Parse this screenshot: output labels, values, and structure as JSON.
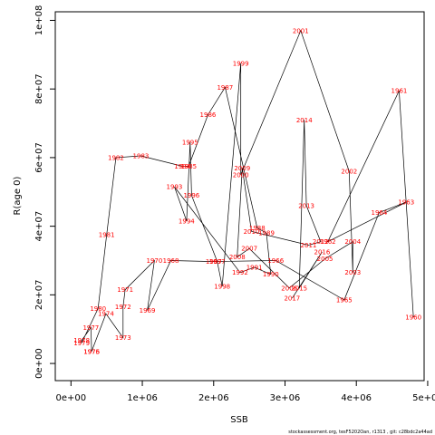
{
  "chart_data": {
    "type": "line",
    "title": "",
    "xlabel": "SSB",
    "ylabel": "R(age 0)",
    "xlim": [
      -220000,
      4950000
    ],
    "ylim": [
      -5000000,
      102500000
    ],
    "xticks": [
      {
        "v": 0,
        "label": "0e+00"
      },
      {
        "v": 1000000,
        "label": "1e+06"
      },
      {
        "v": 2000000,
        "label": "2e+06"
      },
      {
        "v": 3000000,
        "label": "3e+06"
      },
      {
        "v": 4000000,
        "label": "4e+06"
      },
      {
        "v": 5000000,
        "label": "5e+06"
      }
    ],
    "yticks": [
      {
        "v": 0,
        "label": "0e+00"
      },
      {
        "v": 20000000,
        "label": "2e+07"
      },
      {
        "v": 40000000,
        "label": "4e+07"
      },
      {
        "v": 60000000,
        "label": "6e+07"
      },
      {
        "v": 80000000,
        "label": "8e+07"
      },
      {
        "v": 100000000,
        "label": "1e+08"
      }
    ],
    "grid": false,
    "legend": "none",
    "line_color": "#000000",
    "label_color": "#ff0000",
    "series": [
      {
        "points": [
          {
            "year": "1960",
            "x": 4800000,
            "y": 13500000
          },
          {
            "year": "1961",
            "x": 4600000,
            "y": 79500000
          },
          {
            "year": "1962",
            "x": 3600000,
            "y": 35500000
          },
          {
            "year": "1963",
            "x": 4700000,
            "y": 47000000
          },
          {
            "year": "1964",
            "x": 4320000,
            "y": 44000000
          },
          {
            "year": "1965",
            "x": 3830000,
            "y": 18500000
          },
          {
            "year": "1966",
            "x": 2870000,
            "y": 30000000
          },
          {
            "year": "1967",
            "x": 2000000,
            "y": 29700000
          },
          {
            "year": "1968",
            "x": 1400000,
            "y": 30000000
          },
          {
            "year": "1969",
            "x": 1070000,
            "y": 15500000
          },
          {
            "year": "1970",
            "x": 1170000,
            "y": 30000000
          },
          {
            "year": "1971",
            "x": 760000,
            "y": 21500000
          },
          {
            "year": "1972",
            "x": 730000,
            "y": 16500000
          },
          {
            "year": "1973",
            "x": 730000,
            "y": 7500000
          },
          {
            "year": "1974",
            "x": 490000,
            "y": 14500000
          },
          {
            "year": "1975",
            "x": 290000,
            "y": 3500000
          },
          {
            "year": "1976",
            "x": 290000,
            "y": 3500000
          },
          {
            "year": "1977",
            "x": 280000,
            "y": 10500000
          },
          {
            "year": "1978",
            "x": 150000,
            "y": 6700000
          },
          {
            "year": "1979",
            "x": 150000,
            "y": 6000000
          },
          {
            "year": "1980",
            "x": 380000,
            "y": 16000000
          },
          {
            "year": "1981",
            "x": 500000,
            "y": 37500000
          },
          {
            "year": "1982",
            "x": 630000,
            "y": 60000000
          },
          {
            "year": "1983",
            "x": 980000,
            "y": 60500000
          },
          {
            "year": "1984",
            "x": 1560000,
            "y": 57500000
          },
          {
            "year": "1985",
            "x": 1650000,
            "y": 57500000
          },
          {
            "year": "1986",
            "x": 1920000,
            "y": 72500000
          },
          {
            "year": "1987",
            "x": 2160000,
            "y": 80500000
          },
          {
            "year": "1988",
            "x": 2610000,
            "y": 39500000
          },
          {
            "year": "1989",
            "x": 2740000,
            "y": 38000000
          },
          {
            "year": "1990",
            "x": 2800000,
            "y": 26000000
          },
          {
            "year": "1991",
            "x": 2570000,
            "y": 28000000
          },
          {
            "year": "1992",
            "x": 2370000,
            "y": 26500000
          },
          {
            "year": "1993",
            "x": 1450000,
            "y": 51500000
          },
          {
            "year": "1994",
            "x": 1620000,
            "y": 41500000
          },
          {
            "year": "1995",
            "x": 1670000,
            "y": 64500000
          },
          {
            "year": "1996",
            "x": 1690000,
            "y": 49000000
          },
          {
            "year": "1997",
            "x": 2050000,
            "y": 29700000
          },
          {
            "year": "1998",
            "x": 2120000,
            "y": 22500000
          },
          {
            "year": "1999",
            "x": 2380000,
            "y": 87500000
          },
          {
            "year": "2000",
            "x": 2380000,
            "y": 55000000
          },
          {
            "year": "2001",
            "x": 3220000,
            "y": 97000000
          },
          {
            "year": "2002",
            "x": 3900000,
            "y": 56000000
          },
          {
            "year": "2003",
            "x": 3950000,
            "y": 26500000
          },
          {
            "year": "2004",
            "x": 3950000,
            "y": 35500000
          },
          {
            "year": "2005",
            "x": 3560000,
            "y": 30500000
          },
          {
            "year": "2006",
            "x": 3060000,
            "y": 22000000
          },
          {
            "year": "2007",
            "x": 2500000,
            "y": 33500000
          },
          {
            "year": "2008",
            "x": 2330000,
            "y": 31000000
          },
          {
            "year": "2009",
            "x": 2400000,
            "y": 57000000
          },
          {
            "year": "2010",
            "x": 2530000,
            "y": 38500000
          },
          {
            "year": "2011",
            "x": 3330000,
            "y": 34500000
          },
          {
            "year": "2012",
            "x": 3500000,
            "y": 35500000
          },
          {
            "year": "2013",
            "x": 3300000,
            "y": 46000000
          },
          {
            "year": "2014",
            "x": 3270000,
            "y": 71000000
          },
          {
            "year": "2015",
            "x": 3200000,
            "y": 22000000
          },
          {
            "year": "2016",
            "x": 3520000,
            "y": 32500000
          },
          {
            "year": "2017",
            "x": 3100000,
            "y": 19000000
          }
        ]
      }
    ],
    "footnote": "stockassessment.org, tesF5202Oan, r1313 , git: c28bdc2a44ad"
  }
}
